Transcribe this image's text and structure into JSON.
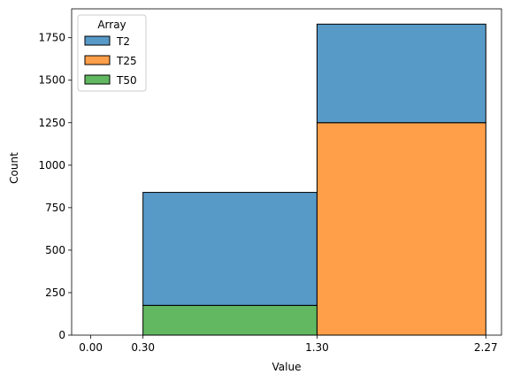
{
  "chart_data": {
    "type": "bar",
    "subtype": "stacked-histogram",
    "title": "",
    "xlabel": "Value",
    "ylabel": "Count",
    "xlim": [
      -0.11,
      2.36
    ],
    "ylim": [
      0,
      1920
    ],
    "xticks": [
      0.0,
      0.3,
      1.3,
      2.27
    ],
    "xtick_labels": [
      "0.00",
      "0.30",
      "1.30",
      "2.27"
    ],
    "yticks": [
      0,
      250,
      500,
      750,
      1000,
      1250,
      1500,
      1750
    ],
    "yticks_labels": [
      "0",
      "250",
      "500",
      "750",
      "1000",
      "1250",
      "1500",
      "1750"
    ],
    "bins": [
      [
        0.0,
        0.3
      ],
      [
        0.3,
        1.3
      ],
      [
        1.3,
        2.27
      ]
    ],
    "series": [
      {
        "name": "T50",
        "color": "#2ca02c",
        "values": [
          0,
          175,
          0
        ]
      },
      {
        "name": "T25",
        "color": "#ff7f0e",
        "values": [
          0,
          0,
          1250
        ]
      },
      {
        "name": "T2",
        "color": "#1f77b4",
        "values": [
          0,
          665,
          580
        ]
      }
    ],
    "legend": {
      "title": "Array",
      "placement": "upper-left",
      "entries": [
        "T2",
        "T25",
        "T50"
      ]
    },
    "grid": false,
    "bar_alpha": 0.75
  }
}
